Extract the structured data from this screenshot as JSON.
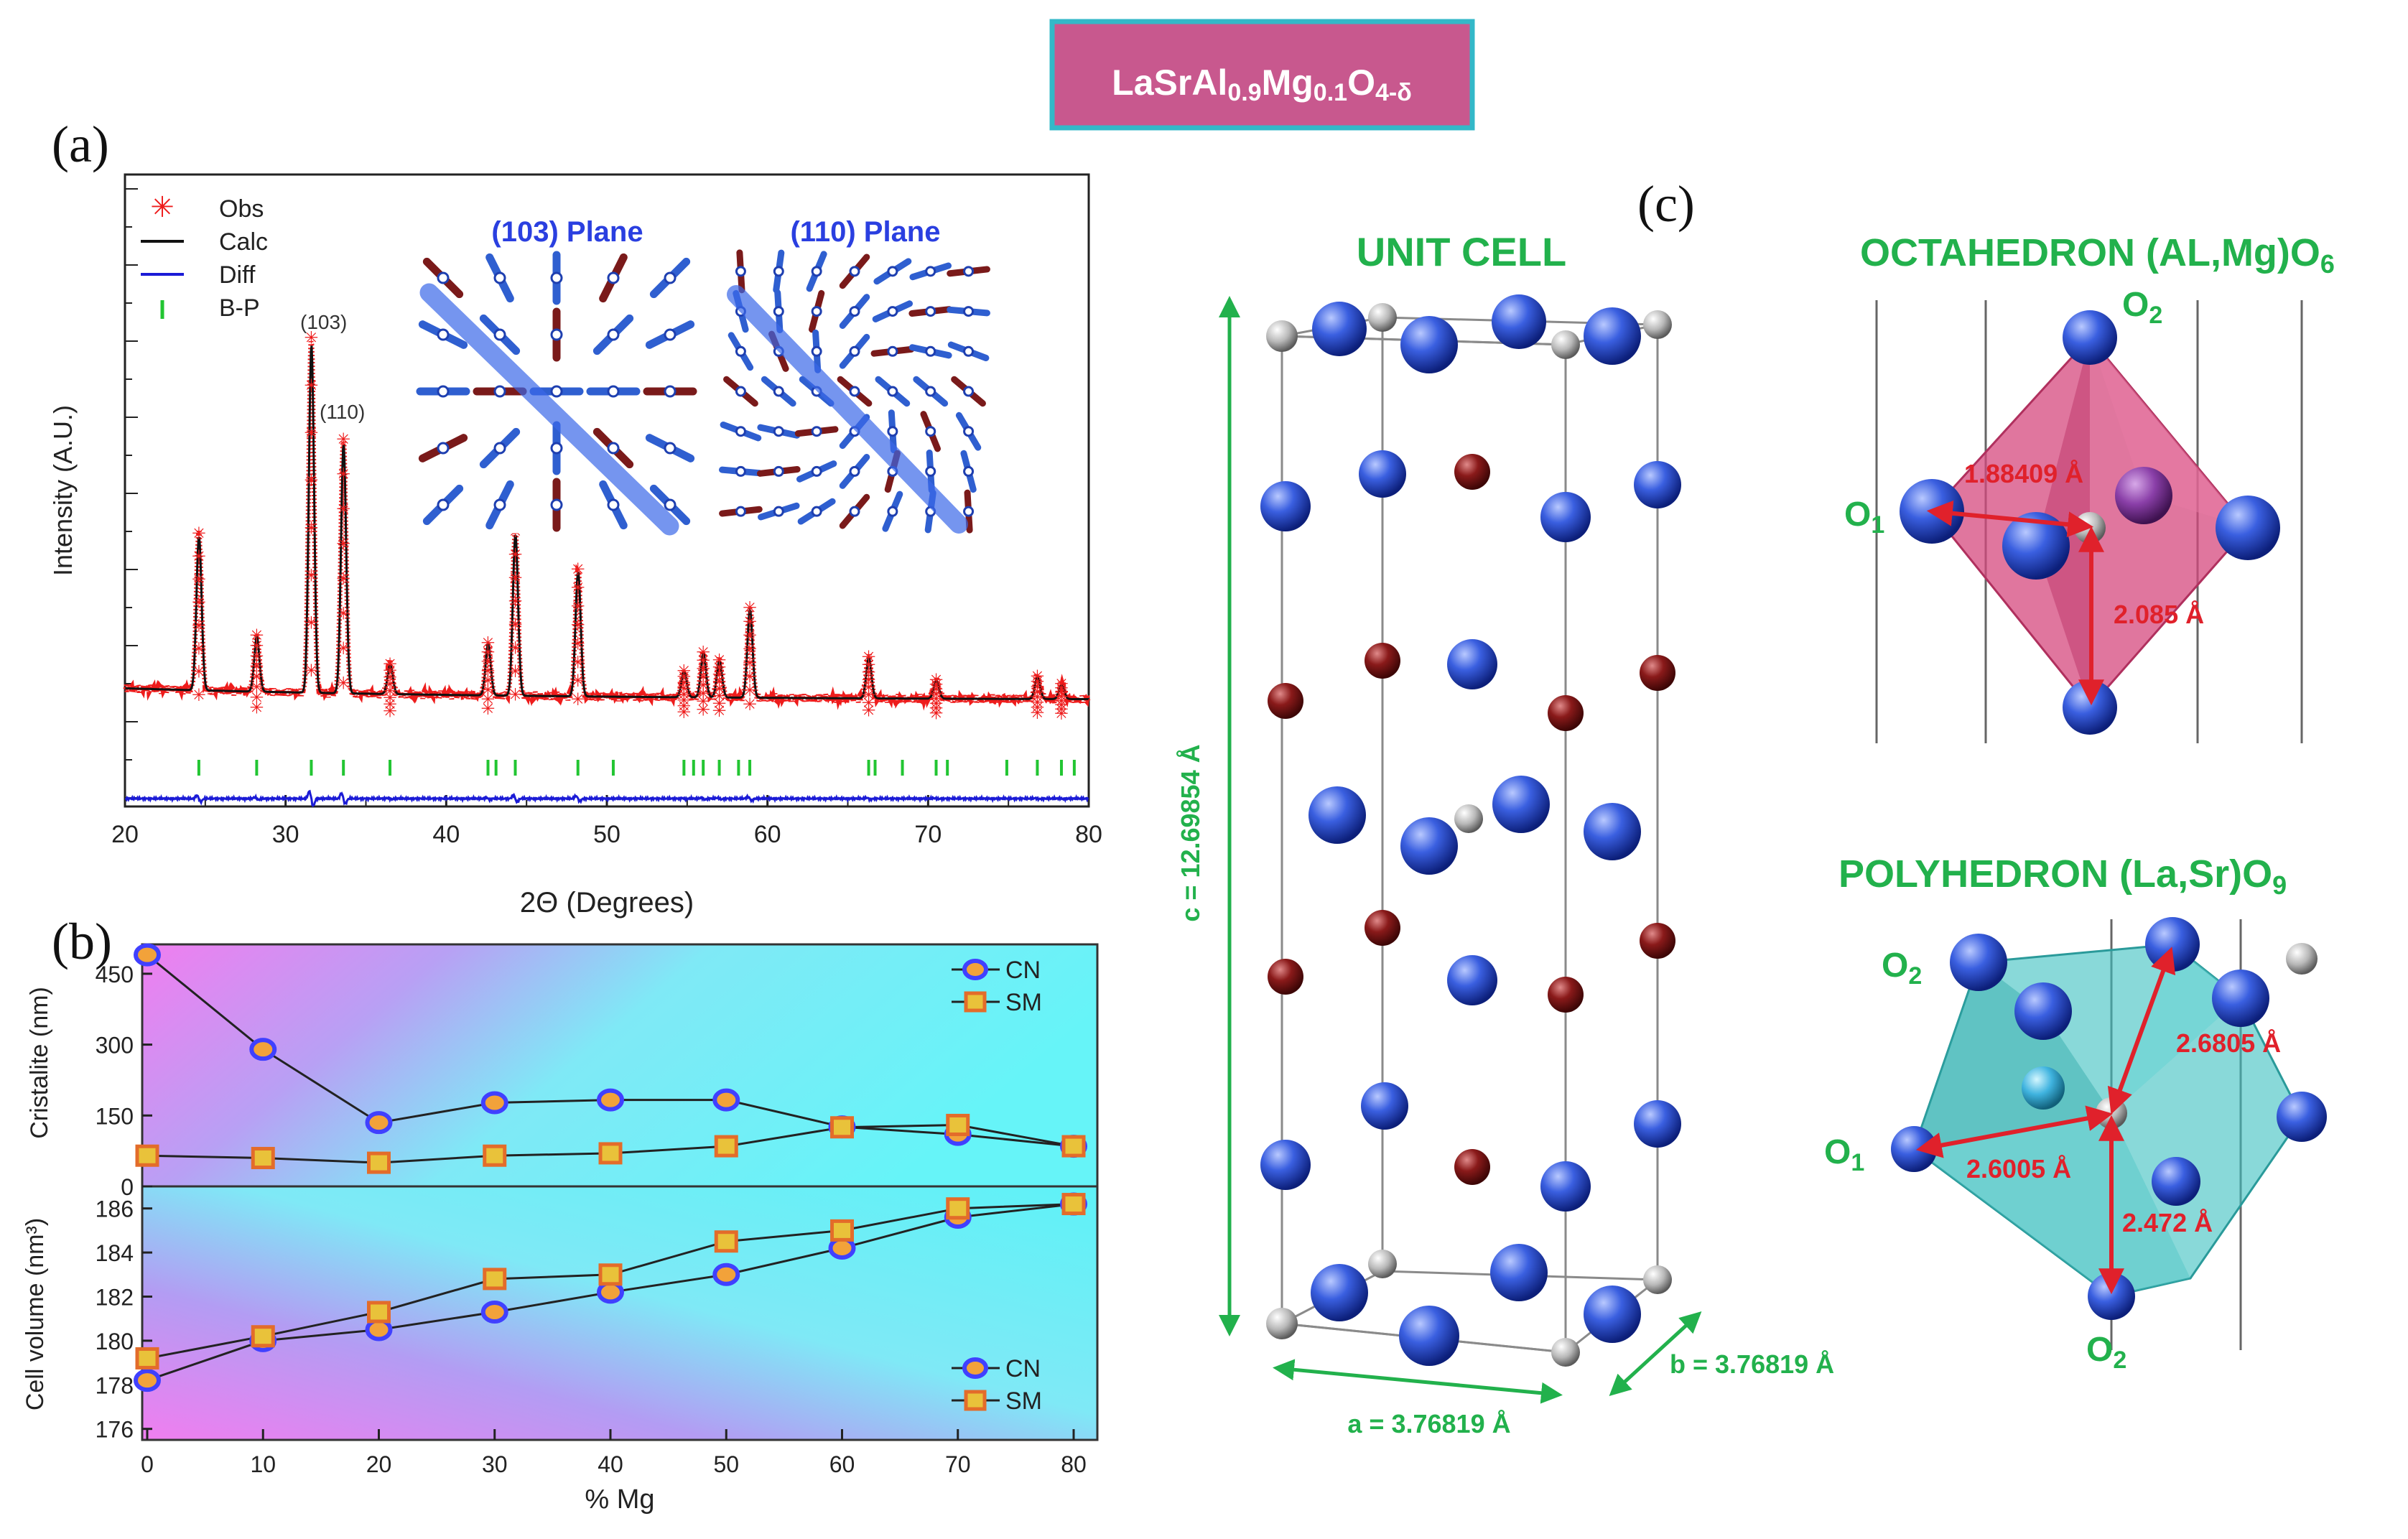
{
  "title": {
    "base1": "LaSrAl",
    "sub1": "0.9",
    "base2": "Mg",
    "sub2": "0.1",
    "base3": "O",
    "sub3": "4-δ"
  },
  "panel_labels": {
    "a": "(a)",
    "b": "(b)",
    "c": "(c)"
  },
  "colors": {
    "obs": "#ee1c1c",
    "calc": "#111111",
    "diff": "#1b1bd6",
    "bp": "#22c532",
    "green_text": "#22b14c",
    "red_text": "#e0212b",
    "title_bg": "#c8588e",
    "title_border": "#33b8c8",
    "cn_marker": "#4040ff",
    "sm_marker": "#e36c2a"
  },
  "chart_data": [
    {
      "panel": "a",
      "type": "line",
      "xlabel": "2Θ (Degrees)",
      "ylabel": "Intensity (A.U.)",
      "xlim": [
        20,
        80
      ],
      "xticks": [
        20,
        30,
        40,
        50,
        60,
        70,
        80
      ],
      "legend": [
        "Obs",
        "Calc",
        "Diff",
        "B-P"
      ],
      "legend_position": "top-left",
      "peaks": [
        {
          "x": 24.6,
          "h": 0.42
        },
        {
          "x": 28.2,
          "h": 0.15
        },
        {
          "x": 31.6,
          "h": 0.95
        },
        {
          "x": 33.6,
          "h": 0.68
        },
        {
          "x": 36.5,
          "h": 0.08
        },
        {
          "x": 42.6,
          "h": 0.14
        },
        {
          "x": 44.3,
          "h": 0.44
        },
        {
          "x": 48.2,
          "h": 0.34
        },
        {
          "x": 54.8,
          "h": 0.07
        },
        {
          "x": 56.0,
          "h": 0.12
        },
        {
          "x": 57.0,
          "h": 0.1
        },
        {
          "x": 58.9,
          "h": 0.24
        },
        {
          "x": 66.3,
          "h": 0.11
        },
        {
          "x": 70.5,
          "h": 0.05
        },
        {
          "x": 76.8,
          "h": 0.06
        },
        {
          "x": 78.3,
          "h": 0.04
        }
      ],
      "bragg_positions": [
        24.6,
        28.2,
        31.6,
        33.6,
        36.5,
        42.6,
        43.1,
        44.3,
        48.2,
        50.4,
        54.8,
        55.4,
        56.0,
        57.0,
        58.2,
        58.9,
        66.3,
        66.7,
        68.4,
        70.5,
        71.2,
        74.9,
        76.8,
        78.3,
        79.1
      ],
      "annotations": [
        "(103)",
        "(110)"
      ],
      "insets": [
        "(103) Plane",
        "(110) Plane"
      ]
    },
    {
      "panel": "b-top",
      "type": "line",
      "ylabel": "Cristalite (nm)",
      "xlim": [
        0,
        80
      ],
      "ylim": [
        0,
        500
      ],
      "yticks": [
        0,
        150,
        300,
        450
      ],
      "legend_position": "top-right",
      "series": [
        {
          "name": "CN",
          "x": [
            0,
            10,
            20,
            30,
            40,
            50,
            60,
            70,
            80
          ],
          "values": [
            490,
            290,
            135,
            177,
            183,
            183,
            126,
            110,
            85
          ]
        },
        {
          "name": "SM",
          "x": [
            0,
            10,
            20,
            30,
            40,
            50,
            60,
            70,
            80
          ],
          "values": [
            65,
            60,
            50,
            65,
            70,
            85,
            125,
            130,
            85
          ]
        }
      ]
    },
    {
      "panel": "b-bottom",
      "type": "line",
      "xlabel": "% Mg",
      "ylabel": "Cell volume (nm³)",
      "xlim": [
        0,
        80
      ],
      "ylim": [
        175.5,
        187
      ],
      "yticks": [
        176,
        178,
        180,
        182,
        184,
        186
      ],
      "xticks": [
        0,
        10,
        20,
        30,
        40,
        50,
        60,
        70,
        80
      ],
      "legend_position": "bottom-right",
      "series": [
        {
          "name": "CN",
          "x": [
            0,
            10,
            20,
            30,
            40,
            50,
            60,
            70,
            80
          ],
          "values": [
            178.2,
            180.0,
            180.5,
            181.3,
            182.2,
            183.0,
            184.2,
            185.6,
            186.2
          ]
        },
        {
          "name": "SM",
          "x": [
            0,
            10,
            20,
            30,
            40,
            50,
            60,
            70,
            80
          ],
          "values": [
            179.2,
            180.2,
            181.3,
            182.8,
            183.0,
            184.5,
            185.0,
            186.0,
            186.2
          ]
        }
      ]
    }
  ],
  "structure": {
    "unit_cell_title": "UNIT CELL",
    "c_label": "c = 12.69854 Å",
    "a_label": "a = 3.76819 Å",
    "b_label": "b = 3.76819 Å",
    "octahedron": {
      "title_base": "OCTAHEDRON (AL,Mg)O",
      "title_sub": "6",
      "o2": {
        "base": "O",
        "sub": "2"
      },
      "o1": {
        "base": "O",
        "sub": "1"
      },
      "d1": "1.88409 Å",
      "d2": "2.085 Å"
    },
    "polyhedron": {
      "title_base": "POLYHEDRON (La,Sr)O",
      "title_sub": "9",
      "o2_top": {
        "base": "O",
        "sub": "2"
      },
      "o1": {
        "base": "O",
        "sub": "1"
      },
      "o2_bottom": {
        "base": "O",
        "sub": "2"
      },
      "d1": "2.6805 Å",
      "d2": "2.6005 Å",
      "d3": "2.472 Å"
    }
  }
}
